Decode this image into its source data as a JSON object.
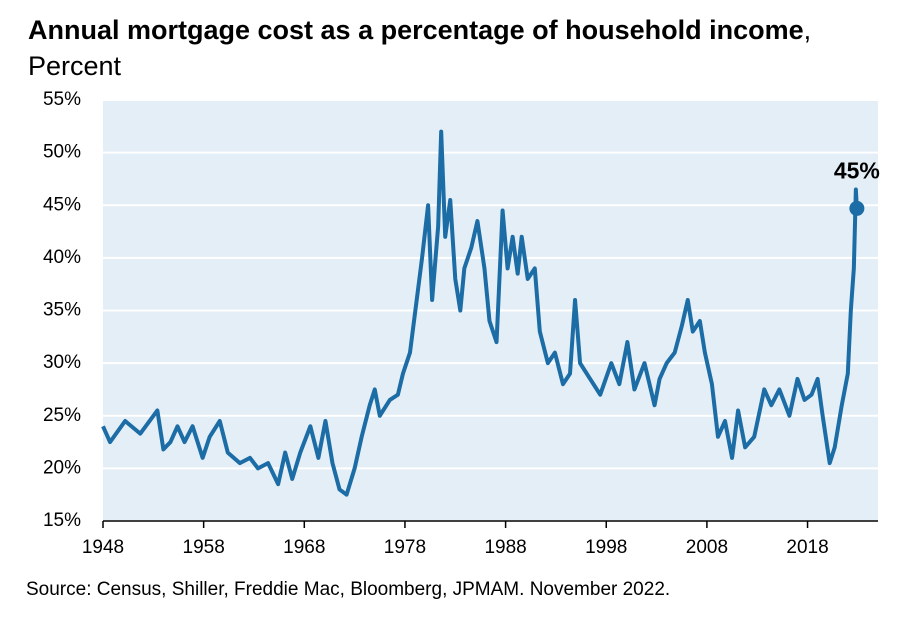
{
  "chart_data": {
    "type": "line",
    "title": "Annual mortgage cost as a percentage of household income",
    "subtitle": ", Percent",
    "source": "Source: Census, Shiller, Freddie Mac, Bloomberg, JPMAM. November 2022.",
    "xlim": [
      1948,
      2025
    ],
    "xticks": [
      1948,
      1958,
      1968,
      1978,
      1988,
      1998,
      2008,
      2018
    ],
    "ylim": [
      15,
      55
    ],
    "yticks": [
      {
        "value": 15,
        "label": "15%"
      },
      {
        "value": 20,
        "label": "20%"
      },
      {
        "value": 25,
        "label": "25%"
      },
      {
        "value": 30,
        "label": "30%"
      },
      {
        "value": 35,
        "label": "35%"
      },
      {
        "value": 40,
        "label": "40%"
      },
      {
        "value": 45,
        "label": "45%"
      },
      {
        "value": 50,
        "label": "50%"
      },
      {
        "value": 55,
        "label": "55%"
      }
    ],
    "grid": true,
    "background": "#e3eef6",
    "x": [
      1948.0,
      1948.7,
      1950.2,
      1951.7,
      1953.4,
      1954.0,
      1954.7,
      1955.4,
      1956.1,
      1956.9,
      1957.9,
      1958.6,
      1959.6,
      1960.4,
      1961.6,
      1962.6,
      1963.4,
      1964.4,
      1965.4,
      1966.1,
      1966.8,
      1967.6,
      1968.6,
      1969.4,
      1970.1,
      1970.8,
      1971.5,
      1972.2,
      1973.0,
      1973.7,
      1974.5,
      1975.0,
      1975.5,
      1976.5,
      1977.3,
      1977.8,
      1978.5,
      1979.3,
      1979.7,
      1980.3,
      1980.7,
      1981.3,
      1981.6,
      1982.0,
      1982.5,
      1983.0,
      1983.5,
      1983.9,
      1984.6,
      1985.2,
      1985.9,
      1986.4,
      1987.1,
      1987.7,
      1988.2,
      1988.7,
      1989.2,
      1989.6,
      1990.2,
      1990.9,
      1991.4,
      1992.2,
      1992.9,
      1993.7,
      1994.4,
      1994.9,
      1995.4,
      1996.4,
      1997.4,
      1998.5,
      1999.3,
      2000.1,
      2000.8,
      2001.8,
      2002.8,
      2003.3,
      2004.0,
      2004.8,
      2005.5,
      2006.1,
      2006.6,
      2007.3,
      2007.8,
      2008.5,
      2009.1,
      2009.8,
      2010.5,
      2011.1,
      2011.8,
      2012.7,
      2013.7,
      2014.4,
      2015.2,
      2016.2,
      2017.0,
      2017.7,
      2018.4,
      2019.0,
      2019.5,
      2020.2,
      2020.7,
      2021.4,
      2022.0,
      2022.3,
      2022.6,
      2022.8,
      2022.9
    ],
    "series": [
      {
        "color": "#1c6ca6",
        "values": [
          24,
          22.5,
          24.5,
          23.3,
          25.5,
          21.8,
          22.5,
          24,
          22.5,
          24,
          21,
          23,
          24.5,
          21.5,
          20.5,
          21,
          20,
          20.5,
          18.5,
          21.5,
          19,
          21.5,
          24,
          21,
          24.5,
          20.5,
          18,
          17.5,
          20,
          23,
          26,
          27.5,
          25,
          26.5,
          27,
          29,
          31,
          37,
          40,
          45,
          36,
          43,
          52,
          42,
          45.5,
          38,
          35,
          39,
          41,
          43.5,
          39,
          34,
          32,
          44.5,
          39,
          42,
          38.5,
          42,
          38,
          39,
          33,
          30,
          31,
          28,
          29,
          36,
          30,
          28.5,
          27,
          30,
          28,
          32,
          27.5,
          30,
          26,
          28.5,
          30,
          31,
          33.5,
          36,
          33,
          34,
          31,
          28,
          23,
          24.5,
          21,
          25.5,
          22,
          23,
          27.5,
          26,
          27.5,
          25,
          28.5,
          26.5,
          27,
          28.5,
          25,
          20.5,
          22,
          26,
          29,
          35,
          39,
          46.5,
          44.7
        ]
      }
    ],
    "annotations": [
      {
        "x": 2022.9,
        "y": 44.7,
        "label": "45%"
      }
    ]
  }
}
